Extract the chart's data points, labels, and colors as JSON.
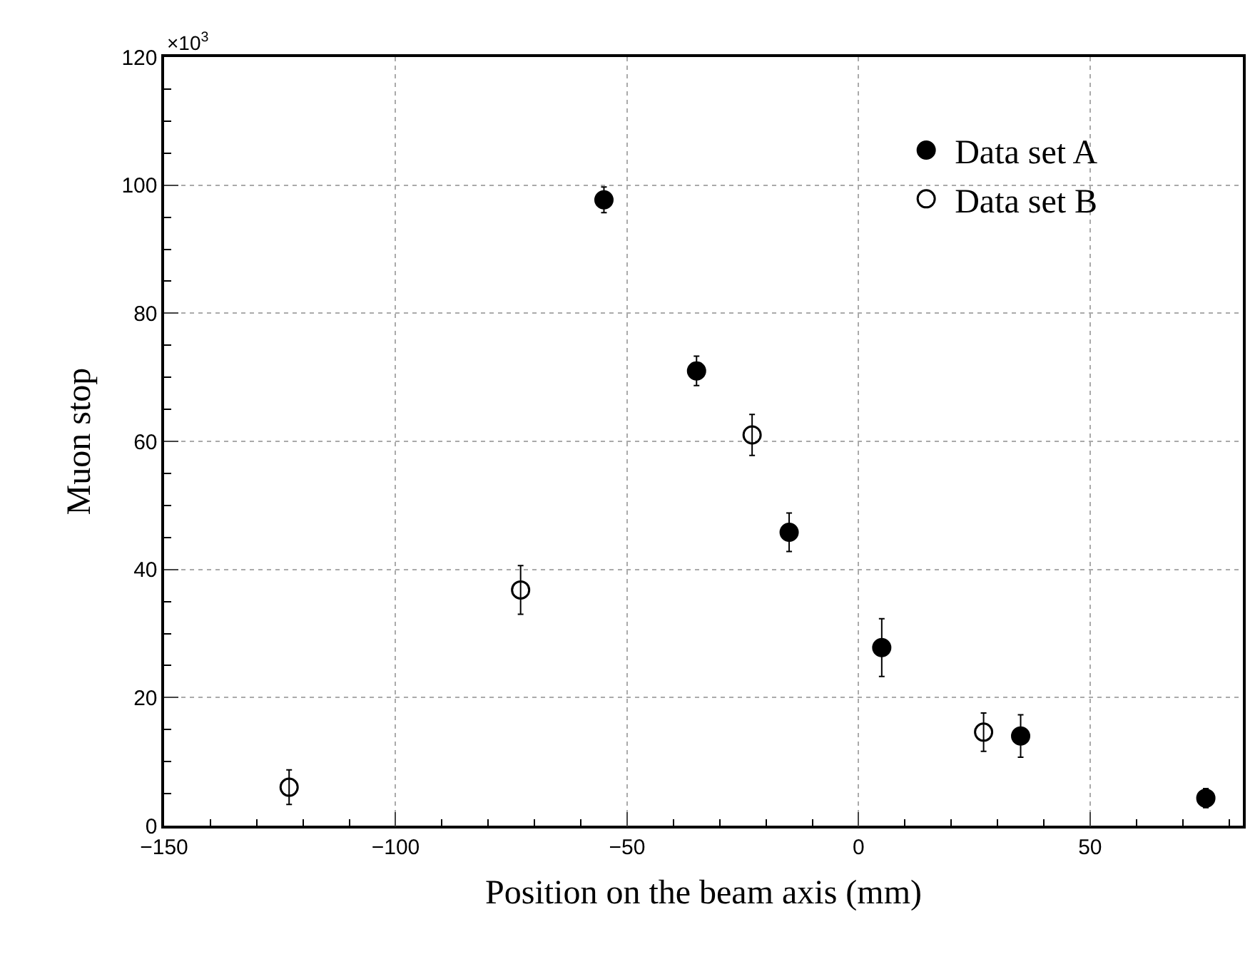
{
  "chart_data": {
    "type": "scatter",
    "xlabel": "Position on the beam axis (mm)",
    "ylabel": "Muon stop",
    "annotations": [
      "×10$^{3}$"
    ],
    "series": [
      {
        "name": "Data set A",
        "color": "#000000",
        "marker": "circle",
        "x": [
          -55,
          -35,
          -15,
          5,
          35,
          75
        ],
        "values": [
          97.7,
          71,
          45.8,
          27.8,
          14,
          4.3
        ],
        "errors": [
          2,
          2.3,
          3,
          4.5,
          3.3,
          1.5
        ]
      },
      {
        "name": "Data set B",
        "color": "#000000",
        "marker": "circle-open",
        "x": [
          -123,
          -73,
          -23,
          27
        ],
        "values": [
          6,
          36.8,
          61,
          14.6
        ],
        "errors": [
          2.7,
          3.8,
          3.2,
          3
        ]
      }
    ],
    "xlim": [
      -150,
      83
    ],
    "xticks": [
      -150,
      -100,
      -50,
      0,
      50
    ],
    "ylim": [
      0,
      120
    ],
    "yticks": [
      0,
      20,
      40,
      60,
      80,
      100,
      120
    ],
    "grid": true,
    "legend": "top right"
  }
}
